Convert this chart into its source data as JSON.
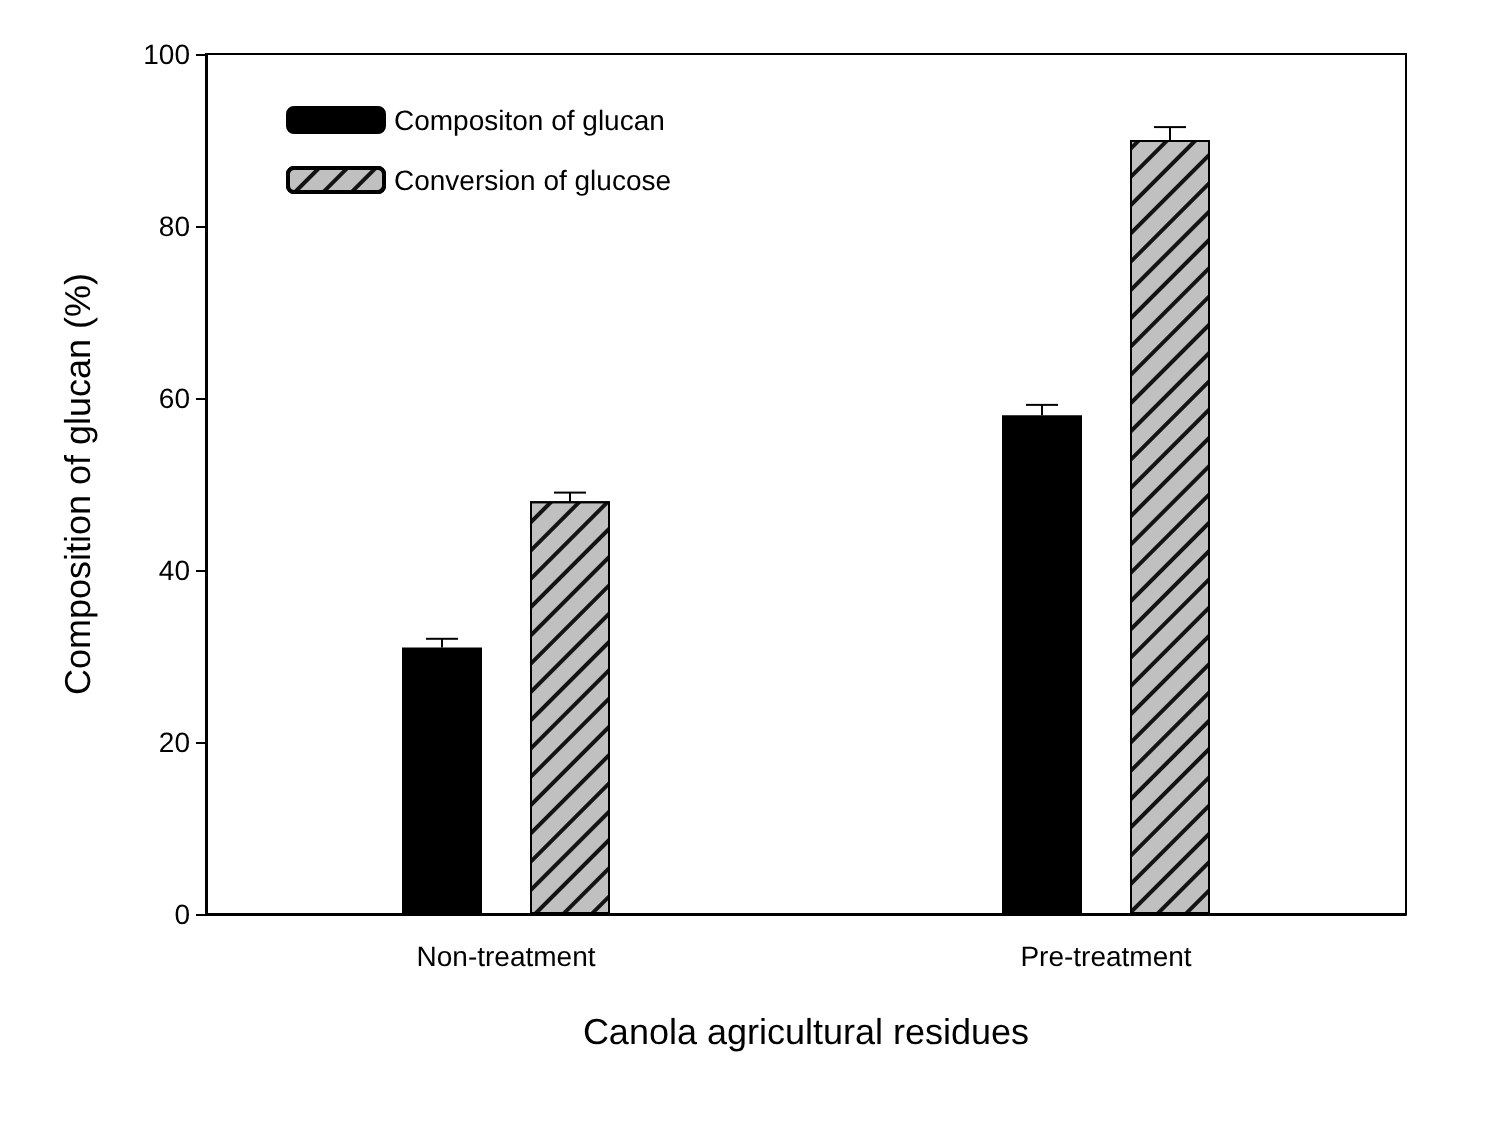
{
  "chart_data": {
    "type": "bar",
    "xlabel": "Canola agricultural residues",
    "ylabel": "Composition of glucan (%)",
    "categories": [
      "Non-treatment",
      "Pre-treatment"
    ],
    "series": [
      {
        "name": "Compositon of glucan",
        "color": "#000000",
        "values": [
          31,
          58
        ],
        "errors": [
          1,
          1.2
        ]
      },
      {
        "name": "Conversion of glucose",
        "color": "#c0c0c0",
        "values": [
          48,
          90
        ],
        "errors": [
          1,
          1.5
        ]
      }
    ],
    "ylim": [
      0,
      100
    ],
    "yticks": [
      0,
      20,
      40,
      60,
      80,
      100
    ],
    "grid": false,
    "legend": "top left"
  }
}
